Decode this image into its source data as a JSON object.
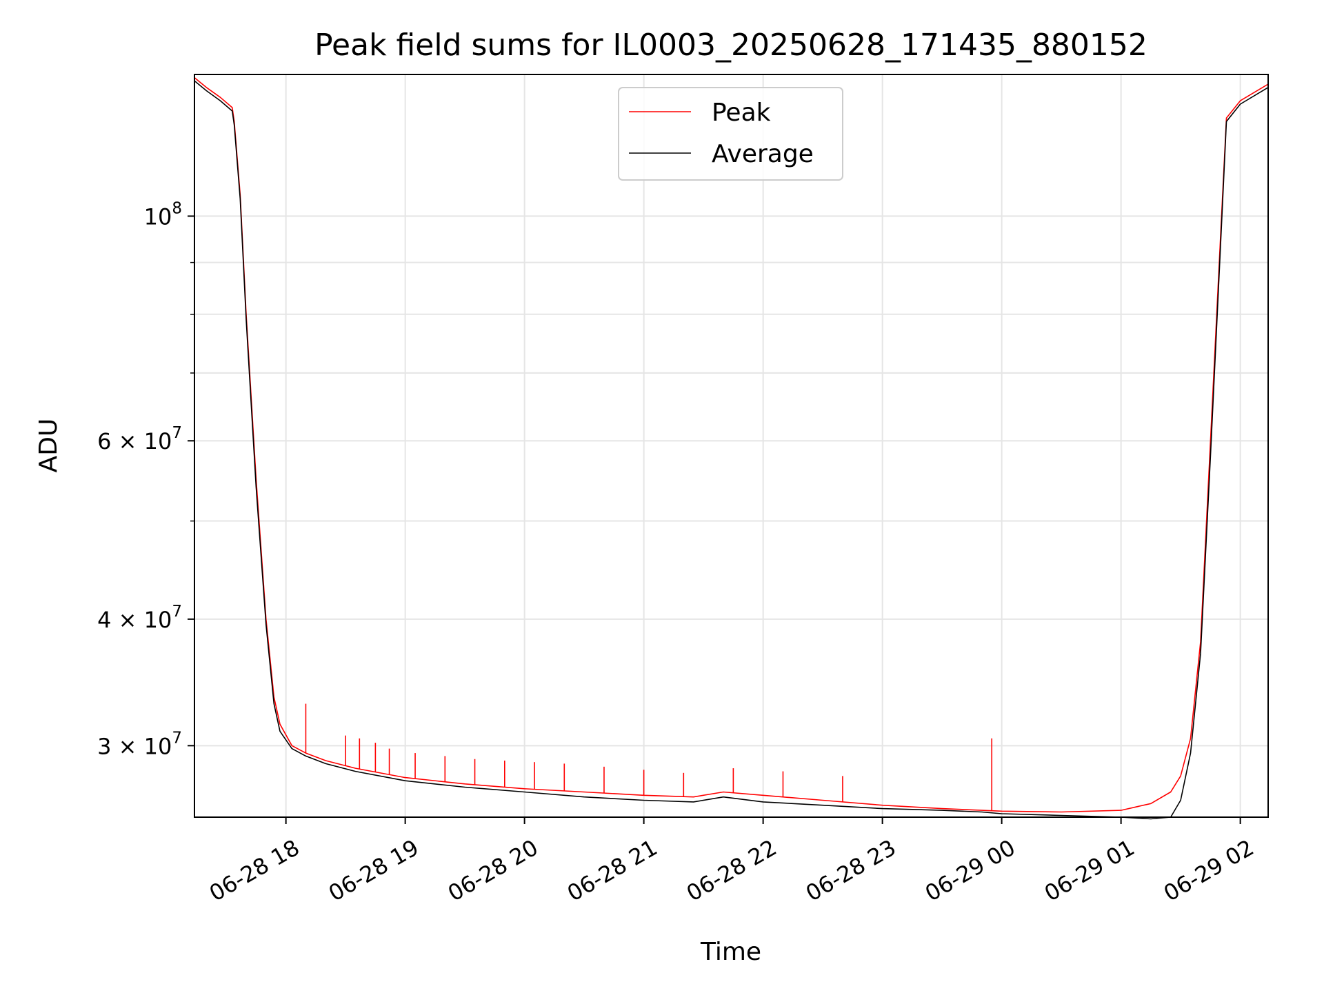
{
  "chart_data": {
    "type": "line",
    "title": "Peak field sums for IL0003_20250628_171435_880152",
    "xlabel": "Time",
    "ylabel": "ADU",
    "yscale": "log",
    "xlim": [
      "2025-06-28 17:14",
      "2025-06-29 02:14"
    ],
    "ylim": [
      25500000,
      138000000
    ],
    "grid": true,
    "legend": "top-center",
    "x_ticks": [
      {
        "time": "2025-06-28 18:00",
        "label": "06-28 18"
      },
      {
        "time": "2025-06-28 19:00",
        "label": "06-28 19"
      },
      {
        "time": "2025-06-28 20:00",
        "label": "06-28 20"
      },
      {
        "time": "2025-06-28 21:00",
        "label": "06-28 21"
      },
      {
        "time": "2025-06-28 22:00",
        "label": "06-28 22"
      },
      {
        "time": "2025-06-28 23:00",
        "label": "06-28 23"
      },
      {
        "time": "2025-06-29 00:00",
        "label": "06-29 00"
      },
      {
        "time": "2025-06-29 01:00",
        "label": "06-29 01"
      },
      {
        "time": "2025-06-29 02:00",
        "label": "06-29 02"
      }
    ],
    "y_ticks": [
      {
        "value": 100000000,
        "base": "10",
        "exp": "8"
      },
      {
        "value": 60000000,
        "base": "6 × 10",
        "exp": "7"
      },
      {
        "value": 40000000,
        "base": "4 × 10",
        "exp": "7"
      },
      {
        "value": 30000000,
        "base": "3 × 10",
        "exp": "7"
      }
    ],
    "y_minor_ticks": [
      90000000,
      80000000,
      70000000,
      50000000
    ],
    "series": [
      {
        "name": "Peak",
        "color": "#ff0000",
        "x": [
          "2025-06-28 17:14",
          "2025-06-28 17:20",
          "2025-06-28 17:27",
          "2025-06-28 17:33",
          "2025-06-28 17:34",
          "2025-06-28 17:37",
          "2025-06-28 17:40",
          "2025-06-28 17:45",
          "2025-06-28 17:50",
          "2025-06-28 17:54",
          "2025-06-28 17:57",
          "2025-06-28 18:03",
          "2025-06-28 18:10",
          "2025-06-28 18:20",
          "2025-06-28 18:35",
          "2025-06-28 19:00",
          "2025-06-28 19:30",
          "2025-06-28 20:00",
          "2025-06-28 20:30",
          "2025-06-28 21:00",
          "2025-06-28 21:25",
          "2025-06-28 21:40",
          "2025-06-28 22:00",
          "2025-06-28 22:30",
          "2025-06-28 23:00",
          "2025-06-28 23:30",
          "2025-06-28 23:50",
          "2025-06-29 00:00",
          "2025-06-29 00:30",
          "2025-06-29 01:00",
          "2025-06-29 01:15",
          "2025-06-29 01:25",
          "2025-06-29 01:30",
          "2025-06-29 01:35",
          "2025-06-29 01:40",
          "2025-06-29 01:45",
          "2025-06-29 01:50",
          "2025-06-29 01:53",
          "2025-06-29 02:00",
          "2025-06-29 02:14"
        ],
        "y": [
          137000000,
          134000000,
          131000000,
          128000000,
          124000000,
          105000000,
          80000000,
          55000000,
          40000000,
          33500000,
          31500000,
          30000000,
          29500000,
          29000000,
          28500000,
          27900000,
          27500000,
          27200000,
          27000000,
          26800000,
          26700000,
          27000000,
          26800000,
          26500000,
          26200000,
          26000000,
          25900000,
          25850000,
          25800000,
          25900000,
          26300000,
          27000000,
          28000000,
          30500000,
          38000000,
          60000000,
          95000000,
          125000000,
          130000000,
          135000000
        ],
        "spikes": [
          {
            "x": "2025-06-28 18:10",
            "y": 33000000
          },
          {
            "x": "2025-06-28 18:30",
            "y": 30700000
          },
          {
            "x": "2025-06-28 18:37",
            "y": 30500000
          },
          {
            "x": "2025-06-28 18:45",
            "y": 30200000
          },
          {
            "x": "2025-06-28 18:52",
            "y": 29800000
          },
          {
            "x": "2025-06-28 19:05",
            "y": 29500000
          },
          {
            "x": "2025-06-28 19:20",
            "y": 29300000
          },
          {
            "x": "2025-06-28 19:35",
            "y": 29100000
          },
          {
            "x": "2025-06-28 19:50",
            "y": 29000000
          },
          {
            "x": "2025-06-28 20:05",
            "y": 28900000
          },
          {
            "x": "2025-06-28 20:20",
            "y": 28800000
          },
          {
            "x": "2025-06-28 20:40",
            "y": 28600000
          },
          {
            "x": "2025-06-28 21:00",
            "y": 28400000
          },
          {
            "x": "2025-06-28 21:20",
            "y": 28200000
          },
          {
            "x": "2025-06-28 21:45",
            "y": 28500000
          },
          {
            "x": "2025-06-28 22:10",
            "y": 28300000
          },
          {
            "x": "2025-06-28 22:40",
            "y": 28000000
          },
          {
            "x": "2025-06-28 23:55",
            "y": 30500000
          }
        ]
      },
      {
        "name": "Average",
        "color": "#000000",
        "x": [
          "2025-06-28 17:14",
          "2025-06-28 17:20",
          "2025-06-28 17:27",
          "2025-06-28 17:33",
          "2025-06-28 17:34",
          "2025-06-28 17:37",
          "2025-06-28 17:40",
          "2025-06-28 17:45",
          "2025-06-28 17:50",
          "2025-06-28 17:54",
          "2025-06-28 17:57",
          "2025-06-28 18:03",
          "2025-06-28 18:10",
          "2025-06-28 18:20",
          "2025-06-28 18:35",
          "2025-06-28 19:00",
          "2025-06-28 19:30",
          "2025-06-28 20:00",
          "2025-06-28 20:30",
          "2025-06-28 21:00",
          "2025-06-28 21:25",
          "2025-06-28 21:40",
          "2025-06-28 22:00",
          "2025-06-28 22:30",
          "2025-06-28 23:00",
          "2025-06-28 23:30",
          "2025-06-28 23:50",
          "2025-06-29 00:00",
          "2025-06-29 00:30",
          "2025-06-29 01:00",
          "2025-06-29 01:15",
          "2025-06-29 01:25",
          "2025-06-29 01:30",
          "2025-06-29 01:35",
          "2025-06-29 01:40",
          "2025-06-29 01:45",
          "2025-06-29 01:50",
          "2025-06-29 01:53",
          "2025-06-29 02:00",
          "2025-06-29 02:14"
        ],
        "y": [
          136000000,
          133000000,
          130000000,
          127000000,
          123000000,
          104000000,
          79000000,
          54000000,
          39500000,
          33000000,
          31000000,
          29800000,
          29300000,
          28800000,
          28300000,
          27700000,
          27300000,
          27000000,
          26700000,
          26500000,
          26400000,
          26700000,
          26400000,
          26200000,
          26000000,
          25900000,
          25800000,
          25700000,
          25600000,
          25500000,
          25400000,
          25500000,
          26500000,
          29500000,
          37000000,
          58000000,
          93000000,
          124000000,
          129000000,
          134000000
        ]
      }
    ]
  }
}
